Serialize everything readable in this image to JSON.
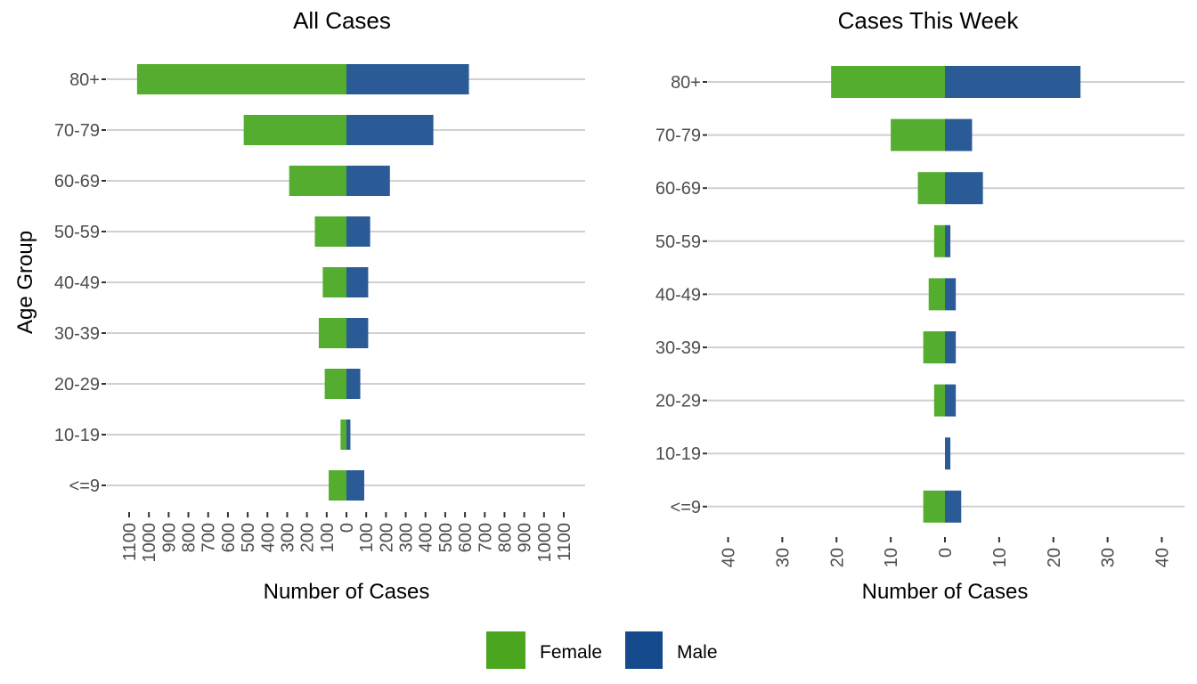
{
  "chart_data": [
    {
      "type": "bar",
      "orientation": "horizontal-population-pyramid",
      "title": "All Cases",
      "xlabel": "Number of Cases",
      "ylabel": "Age Group",
      "categories": [
        "80+",
        "70-79",
        "60-69",
        "50-59",
        "40-49",
        "30-39",
        "20-29",
        "10-19",
        "<=9"
      ],
      "series": [
        {
          "name": "Female",
          "side": "left",
          "values": [
            1060,
            520,
            290,
            160,
            120,
            140,
            110,
            30,
            90
          ]
        },
        {
          "name": "Male",
          "side": "right",
          "values": [
            620,
            440,
            220,
            120,
            110,
            110,
            70,
            20,
            90
          ]
        }
      ],
      "xlim": [
        -1100,
        1100
      ],
      "xticks": [
        -1100,
        -1000,
        -900,
        -800,
        -700,
        -600,
        -500,
        -400,
        -300,
        -200,
        -100,
        0,
        100,
        200,
        300,
        400,
        500,
        600,
        700,
        800,
        900,
        1000,
        1100
      ],
      "xtick_labels": [
        "1100",
        "1000",
        "900",
        "800",
        "700",
        "600",
        "500",
        "400",
        "300",
        "200",
        "100",
        "0",
        "100",
        "200",
        "300",
        "400",
        "500",
        "600",
        "700",
        "800",
        "900",
        "1000",
        "1100"
      ],
      "grid": "horizontal"
    },
    {
      "type": "bar",
      "orientation": "horizontal-population-pyramid",
      "title": "Cases This Week",
      "xlabel": "Number of Cases",
      "ylabel": "",
      "categories": [
        "80+",
        "70-79",
        "60-69",
        "50-59",
        "40-49",
        "30-39",
        "20-29",
        "10-19",
        "<=9"
      ],
      "series": [
        {
          "name": "Female",
          "side": "left",
          "values": [
            21,
            10,
            5,
            2,
            3,
            4,
            2,
            0,
            4
          ]
        },
        {
          "name": "Male",
          "side": "right",
          "values": [
            25,
            5,
            7,
            1,
            2,
            2,
            2,
            1,
            3
          ]
        }
      ],
      "xlim": [
        -40,
        40
      ],
      "xticks": [
        -40,
        -30,
        -20,
        -10,
        0,
        10,
        20,
        30,
        40
      ],
      "xtick_labels": [
        "40",
        "30",
        "20",
        "10",
        "0",
        "10",
        "20",
        "30",
        "40"
      ],
      "grid": "horizontal"
    }
  ],
  "legend": {
    "placement": "bottom",
    "items": [
      {
        "label": "Female",
        "color": "#4aa61e"
      },
      {
        "label": "Male",
        "color": "#154b8d"
      }
    ]
  },
  "colors": {
    "female_bar": "#55ad2f",
    "male_bar": "#2a5b96"
  }
}
